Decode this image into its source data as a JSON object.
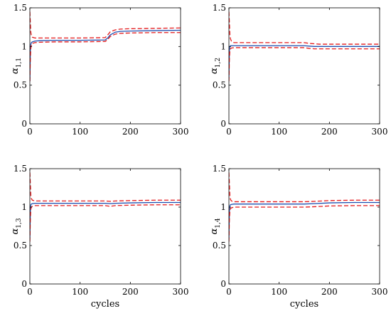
{
  "chart_data": [
    {
      "type": "line",
      "ylabel_symbol": "α",
      "ylabel_sub": "1,1",
      "xlabel": "",
      "xlim": [
        0,
        300
      ],
      "ylim": [
        0,
        1.5
      ],
      "xticks": [
        0,
        100,
        200,
        300
      ],
      "yticks": [
        0,
        0.5,
        1,
        1.5
      ],
      "grid": false,
      "series": [
        {
          "role": "upper-bound",
          "color": "#e41a1c",
          "dash": true,
          "x": [
            0,
            1,
            2,
            3,
            5,
            10,
            20,
            50,
            100,
            150,
            155,
            160,
            170,
            180,
            200,
            250,
            300
          ],
          "y": [
            1.45,
            1.3,
            1.18,
            1.14,
            1.12,
            1.11,
            1.11,
            1.11,
            1.11,
            1.115,
            1.15,
            1.19,
            1.215,
            1.225,
            1.23,
            1.235,
            1.24
          ]
        },
        {
          "role": "estimate",
          "color": "#1f4fb0",
          "dash": false,
          "x": [
            0,
            1,
            2,
            3,
            5,
            10,
            20,
            50,
            100,
            150,
            155,
            160,
            170,
            180,
            200,
            250,
            300
          ],
          "y": [
            0.55,
            0.95,
            1.03,
            1.05,
            1.06,
            1.07,
            1.075,
            1.08,
            1.08,
            1.085,
            1.11,
            1.15,
            1.185,
            1.195,
            1.2,
            1.205,
            1.21
          ]
        },
        {
          "role": "lower-bound",
          "color": "#e41a1c",
          "dash": true,
          "x": [
            0,
            1,
            2,
            3,
            5,
            10,
            20,
            50,
            100,
            150,
            155,
            160,
            170,
            180,
            200,
            250,
            300
          ],
          "y": [
            0.55,
            0.85,
            0.98,
            1.02,
            1.04,
            1.05,
            1.055,
            1.06,
            1.06,
            1.065,
            1.09,
            1.13,
            1.16,
            1.17,
            1.175,
            1.18,
            1.18
          ]
        }
      ]
    },
    {
      "type": "line",
      "ylabel_symbol": "α",
      "ylabel_sub": "1,2",
      "xlabel": "",
      "xlim": [
        0,
        300
      ],
      "ylim": [
        0,
        1.5
      ],
      "xticks": [
        0,
        100,
        200,
        300
      ],
      "yticks": [
        0,
        0.5,
        1,
        1.5
      ],
      "grid": false,
      "series": [
        {
          "role": "upper-bound",
          "color": "#e41a1c",
          "dash": true,
          "x": [
            0,
            1,
            2,
            3,
            5,
            10,
            20,
            50,
            100,
            150,
            160,
            170,
            180,
            200,
            250,
            300
          ],
          "y": [
            1.45,
            1.3,
            1.15,
            1.1,
            1.07,
            1.05,
            1.05,
            1.05,
            1.05,
            1.05,
            1.04,
            1.035,
            1.03,
            1.03,
            1.03,
            1.03
          ]
        },
        {
          "role": "estimate",
          "color": "#1f4fb0",
          "dash": false,
          "x": [
            0,
            1,
            2,
            3,
            5,
            10,
            20,
            50,
            100,
            150,
            160,
            170,
            180,
            200,
            250,
            300
          ],
          "y": [
            0.6,
            0.95,
            1.0,
            1.01,
            1.01,
            1.01,
            1.01,
            1.01,
            1.01,
            1.01,
            1.005,
            1.0,
            1.0,
            1.0,
            1.0,
            1.0
          ]
        },
        {
          "role": "lower-bound",
          "color": "#e41a1c",
          "dash": true,
          "x": [
            0,
            1,
            2,
            3,
            5,
            10,
            20,
            50,
            100,
            150,
            160,
            170,
            180,
            200,
            250,
            300
          ],
          "y": [
            0.55,
            0.85,
            0.95,
            0.97,
            0.98,
            0.985,
            0.985,
            0.985,
            0.985,
            0.985,
            0.975,
            0.97,
            0.97,
            0.97,
            0.97,
            0.97
          ]
        }
      ]
    },
    {
      "type": "line",
      "ylabel_symbol": "α",
      "ylabel_sub": "1,3",
      "xlabel": "cycles",
      "xlim": [
        0,
        300
      ],
      "ylim": [
        0,
        1.5
      ],
      "xticks": [
        0,
        100,
        200,
        300
      ],
      "yticks": [
        0,
        0.5,
        1,
        1.5
      ],
      "grid": false,
      "series": [
        {
          "role": "upper-bound",
          "color": "#e41a1c",
          "dash": true,
          "x": [
            0,
            1,
            2,
            3,
            5,
            10,
            20,
            50,
            100,
            150,
            160,
            170,
            200,
            250,
            300
          ],
          "y": [
            1.45,
            1.3,
            1.15,
            1.11,
            1.09,
            1.08,
            1.08,
            1.08,
            1.08,
            1.08,
            1.075,
            1.08,
            1.085,
            1.09,
            1.09
          ]
        },
        {
          "role": "estimate",
          "color": "#1f4fb0",
          "dash": false,
          "x": [
            0,
            1,
            2,
            3,
            5,
            10,
            20,
            50,
            100,
            150,
            160,
            170,
            200,
            250,
            300
          ],
          "y": [
            0.6,
            0.95,
            1.03,
            1.04,
            1.045,
            1.05,
            1.05,
            1.05,
            1.05,
            1.05,
            1.045,
            1.05,
            1.055,
            1.06,
            1.06
          ]
        },
        {
          "role": "lower-bound",
          "color": "#e41a1c",
          "dash": true,
          "x": [
            0,
            1,
            2,
            3,
            5,
            10,
            20,
            50,
            100,
            150,
            160,
            170,
            200,
            250,
            300
          ],
          "y": [
            0.55,
            0.85,
            0.97,
            1.0,
            1.01,
            1.02,
            1.02,
            1.02,
            1.02,
            1.02,
            1.01,
            1.02,
            1.025,
            1.03,
            1.03
          ]
        }
      ]
    },
    {
      "type": "line",
      "ylabel_symbol": "α",
      "ylabel_sub": "1,4",
      "xlabel": "cycles",
      "xlim": [
        0,
        300
      ],
      "ylim": [
        0,
        1.5
      ],
      "xticks": [
        0,
        100,
        200,
        300
      ],
      "yticks": [
        0,
        0.5,
        1,
        1.5
      ],
      "grid": false,
      "series": [
        {
          "role": "upper-bound",
          "color": "#e41a1c",
          "dash": true,
          "x": [
            0,
            1,
            2,
            3,
            5,
            10,
            20,
            50,
            100,
            150,
            170,
            200,
            250,
            300
          ],
          "y": [
            1.45,
            1.3,
            1.14,
            1.1,
            1.08,
            1.07,
            1.07,
            1.07,
            1.07,
            1.07,
            1.075,
            1.085,
            1.09,
            1.09
          ]
        },
        {
          "role": "estimate",
          "color": "#1f4fb0",
          "dash": false,
          "x": [
            0,
            1,
            2,
            3,
            5,
            10,
            20,
            50,
            100,
            150,
            170,
            200,
            250,
            300
          ],
          "y": [
            0.6,
            0.95,
            1.02,
            1.03,
            1.035,
            1.04,
            1.04,
            1.04,
            1.04,
            1.04,
            1.045,
            1.055,
            1.06,
            1.06
          ]
        },
        {
          "role": "lower-bound",
          "color": "#e41a1c",
          "dash": true,
          "x": [
            0,
            1,
            2,
            3,
            5,
            10,
            20,
            50,
            100,
            150,
            170,
            200,
            250,
            300
          ],
          "y": [
            0.55,
            0.85,
            0.95,
            0.98,
            0.99,
            1.0,
            1.0,
            1.0,
            1.0,
            1.0,
            1.005,
            1.015,
            1.02,
            1.02
          ]
        }
      ]
    }
  ]
}
